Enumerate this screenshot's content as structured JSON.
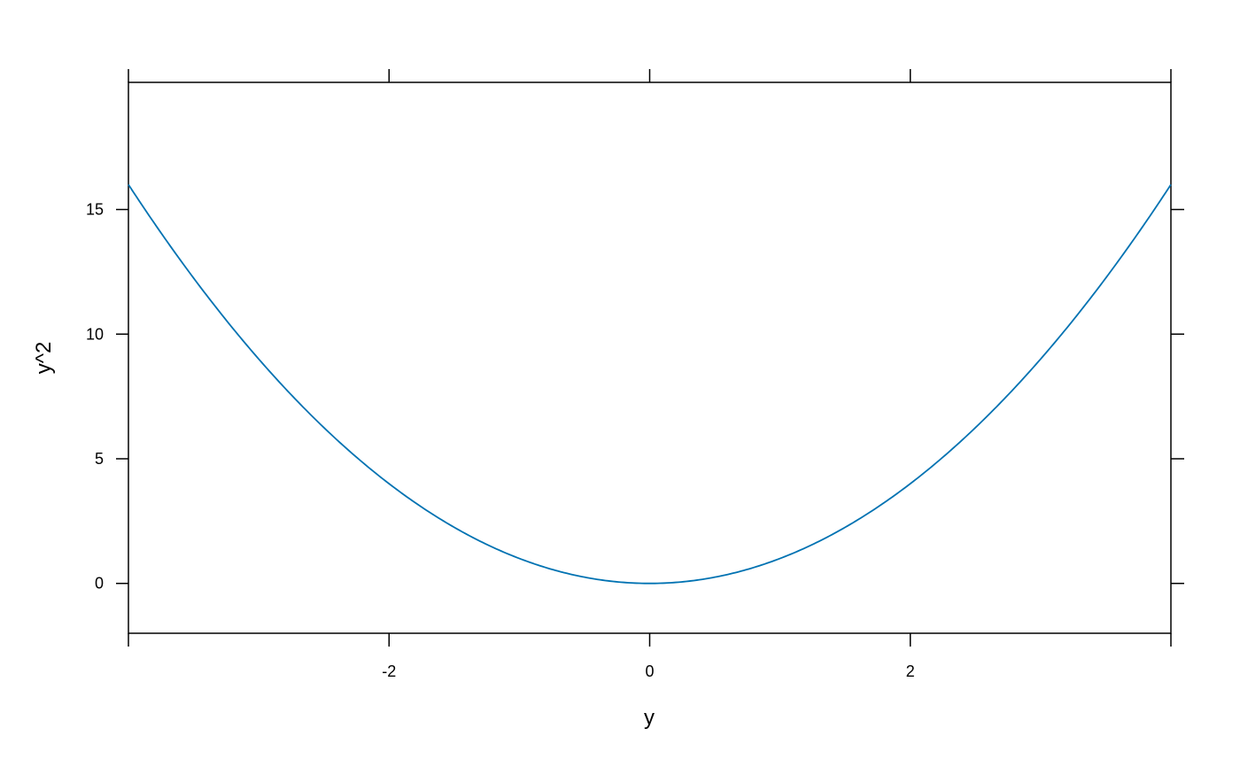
{
  "chart_data": {
    "type": "line",
    "title": "",
    "xlabel": "y",
    "ylabel": "y^2",
    "xlim": [
      -4,
      4
    ],
    "ylim": [
      -2.0,
      20.1
    ],
    "x_ticks": [
      -4,
      -2,
      0,
      2,
      4
    ],
    "x_tick_labels": [
      "",
      "-2",
      "0",
      "2",
      ""
    ],
    "y_ticks": [
      0,
      5,
      10,
      15
    ],
    "y_tick_labels": [
      "0",
      "5",
      "10",
      "15"
    ],
    "grid": false,
    "function": "y^2",
    "x_range": [
      -4,
      4
    ],
    "series": [
      {
        "x": [
          -4,
          -3.5,
          -3,
          -2.5,
          -2,
          -1.5,
          -1,
          -0.5,
          0,
          0.5,
          1,
          1.5,
          2,
          2.5,
          3,
          3.5,
          4
        ],
        "y": [
          16,
          12.25,
          9,
          6.25,
          4,
          2.25,
          1,
          0.25,
          0,
          0.25,
          1,
          2.25,
          4,
          6.25,
          9,
          12.25,
          16
        ]
      }
    ],
    "colors": {
      "line": "#0072B2",
      "axis": "#000000"
    }
  }
}
